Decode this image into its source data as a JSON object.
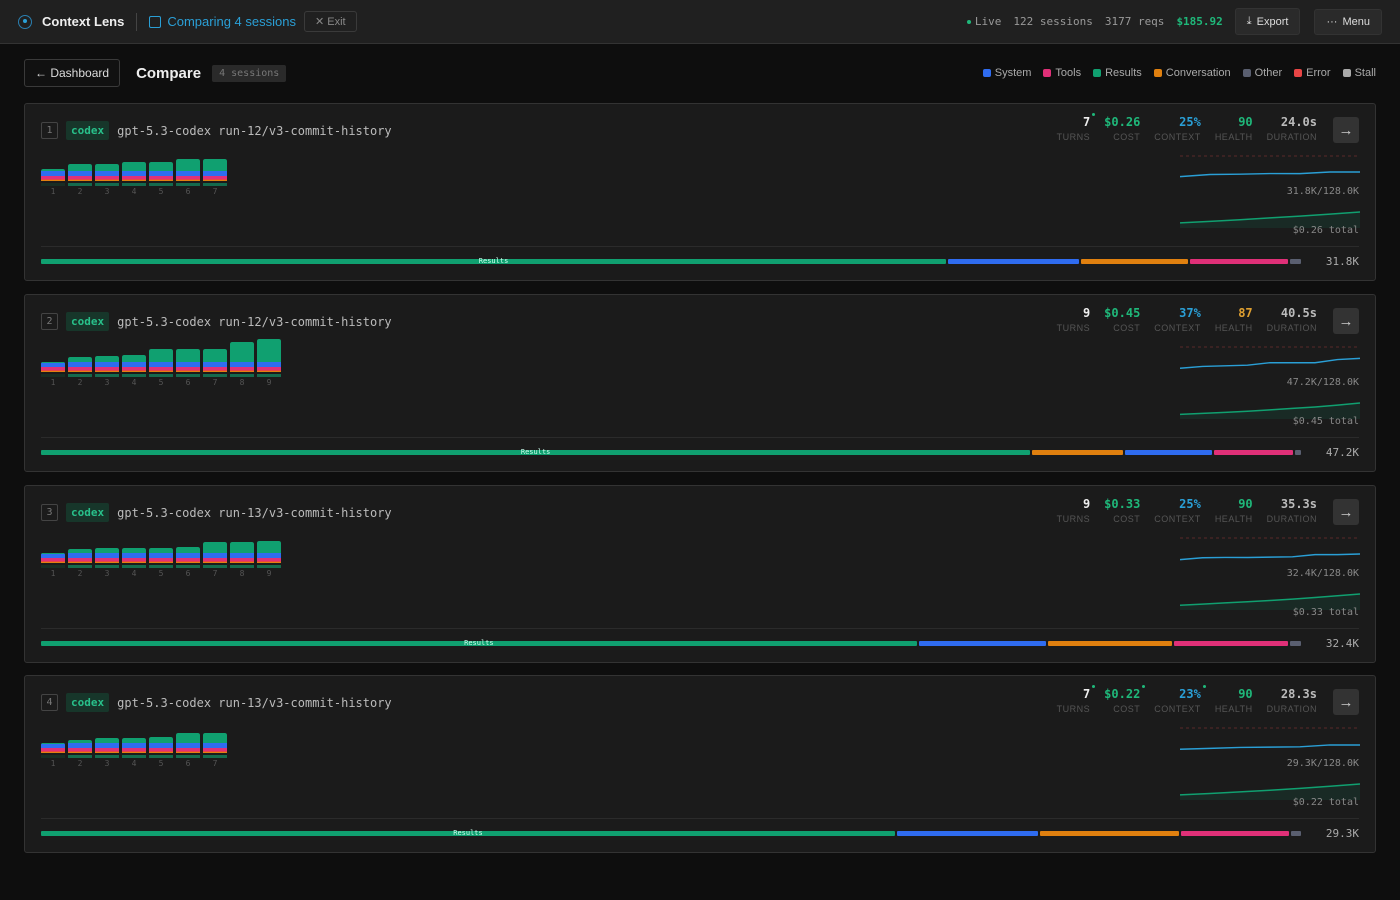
{
  "topbar": {
    "app_name": "Context Lens",
    "comparing": "Comparing 4 sessions",
    "exit": "Exit",
    "live": "Live",
    "sessions": "122 sessions",
    "reqs": "3177 reqs",
    "total_cost": "$185.92",
    "export": "Export",
    "menu": "Menu"
  },
  "subbar": {
    "back": "Dashboard",
    "title": "Compare",
    "badge": "4 sessions"
  },
  "legend": [
    {
      "label": "System",
      "color": "#2f6cf0"
    },
    {
      "label": "Tools",
      "color": "#e03078"
    },
    {
      "label": "Results",
      "color": "#10a070"
    },
    {
      "label": "Conversation",
      "color": "#e0800f"
    },
    {
      "label": "Other",
      "color": "#5a5f70"
    },
    {
      "label": "Error",
      "color": "#e84545"
    },
    {
      "label": "Stall",
      "color": "#aaaaaa"
    }
  ],
  "metric_labels": {
    "turns": "TURNS",
    "cost": "COST",
    "context": "CONTEXT",
    "health": "HEALTH",
    "duration": "DURATION"
  },
  "composition_label": "Results",
  "sessions": [
    {
      "index": "1",
      "agent": "codex",
      "name": "gpt-5.3-codex run-12/v3-commit-history",
      "turns": "7",
      "turns_flag": true,
      "cost": "$0.26",
      "cost_flag": false,
      "context": "25%",
      "context_flag": false,
      "health": "90",
      "health_color": "#1fb87a",
      "duration": "24.0s",
      "context_text": "31.8K/128.0K",
      "cost_text": "$0.26 total",
      "total": "31.8K",
      "turn_totals_k": [
        17,
        24,
        25,
        27,
        27,
        32,
        32
      ],
      "composition_pct": [
        {
          "cat": "Results",
          "pct": 72
        },
        {
          "cat": "System",
          "pct": 10.4
        },
        {
          "cat": "Conversation",
          "pct": 8.5
        },
        {
          "cat": "Tools",
          "pct": 7.8
        },
        {
          "cat": "Other",
          "pct": 0.9
        }
      ]
    },
    {
      "index": "2",
      "agent": "codex",
      "name": "gpt-5.3-codex run-12/v3-commit-history",
      "turns": "9",
      "turns_flag": false,
      "cost": "$0.45",
      "cost_flag": false,
      "context": "37%",
      "context_flag": false,
      "health": "87",
      "health_color": "#e0a030",
      "duration": "40.5s",
      "context_text": "47.2K/128.0K",
      "cost_text": "$0.45 total",
      "total": "47.2K",
      "turn_totals_k": [
        15,
        21,
        23,
        25,
        33,
        33,
        33,
        43,
        47
      ],
      "composition_pct": [
        {
          "cat": "Results",
          "pct": 78.7
        },
        {
          "cat": "Conversation",
          "pct": 7.2
        },
        {
          "cat": "System",
          "pct": 6.9
        },
        {
          "cat": "Tools",
          "pct": 6.3
        },
        {
          "cat": "Other",
          "pct": 0.5
        }
      ]
    },
    {
      "index": "3",
      "agent": "codex",
      "name": "gpt-5.3-codex run-13/v3-commit-history",
      "turns": "9",
      "turns_flag": false,
      "cost": "$0.33",
      "cost_flag": false,
      "context": "25%",
      "context_flag": false,
      "health": "90",
      "health_color": "#1fb87a",
      "duration": "35.3s",
      "context_text": "32.4K/128.0K",
      "cost_text": "$0.33 total",
      "total": "32.4K",
      "turn_totals_k": [
        14,
        20,
        21,
        21,
        22,
        23,
        30,
        30,
        32
      ],
      "composition_pct": [
        {
          "cat": "Results",
          "pct": 69.6
        },
        {
          "cat": "System",
          "pct": 10.1
        },
        {
          "cat": "Conversation",
          "pct": 9.9
        },
        {
          "cat": "Tools",
          "pct": 9
        },
        {
          "cat": "Other",
          "pct": 0.9
        }
      ]
    },
    {
      "index": "4",
      "agent": "codex",
      "name": "gpt-5.3-codex run-13/v3-commit-history",
      "turns": "7",
      "turns_flag": true,
      "cost": "$0.22",
      "cost_flag": true,
      "context": "23%",
      "context_flag": true,
      "health": "90",
      "health_color": "#1fb87a",
      "duration": "28.3s",
      "context_text": "29.3K/128.0K",
      "cost_text": "$0.22 total",
      "total": "29.3K",
      "turn_totals_k": [
        15,
        18,
        21,
        22,
        23,
        29,
        29
      ],
      "composition_pct": [
        {
          "cat": "Results",
          "pct": 67.8
        },
        {
          "cat": "System",
          "pct": 11.2
        },
        {
          "cat": "Conversation",
          "pct": 11
        },
        {
          "cat": "Tools",
          "pct": 8.6
        },
        {
          "cat": "Other",
          "pct": 0.8
        }
      ]
    }
  ]
}
